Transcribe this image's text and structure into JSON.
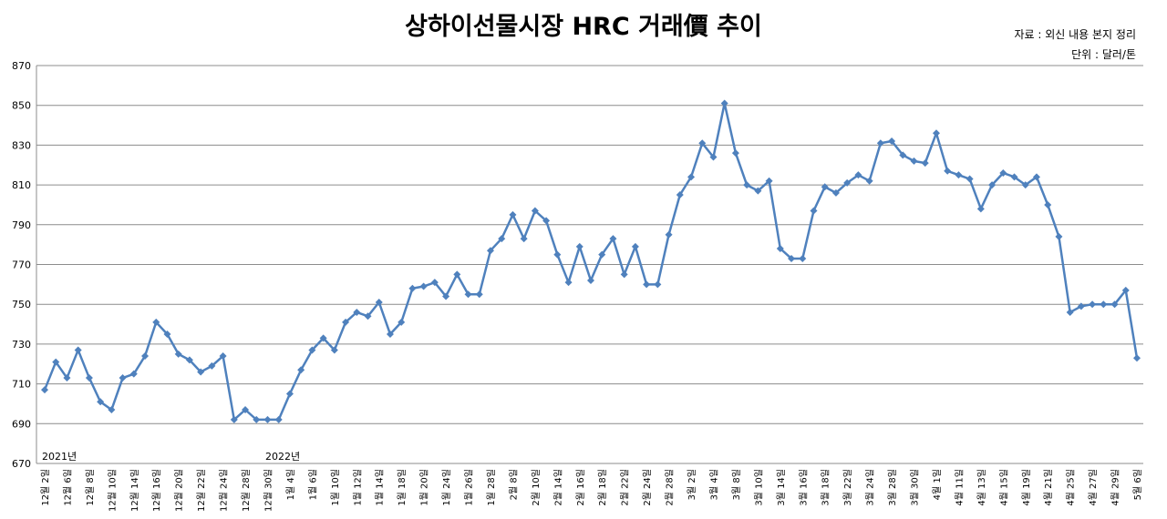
{
  "chart_data": {
    "type": "line",
    "title": "상하이선물시장 HRC 거래價 추이",
    "source": "자료 : 외신 내용 본지 정리",
    "unit": "단위 : 달러/톤",
    "annotations": [
      "2021년",
      "2022년"
    ],
    "categories": [
      "12월 2일",
      null,
      "12월 6일",
      null,
      "12월 8일",
      null,
      "12월 10일",
      null,
      "12월 14일",
      null,
      "12월 16일",
      null,
      "12월 20일",
      null,
      "12월 22일",
      null,
      "12월 24일",
      null,
      "12월 28일",
      null,
      "12월 30일",
      null,
      "1월 4일",
      null,
      "1월 6일",
      null,
      "1월 10일",
      null,
      "1월 12일",
      null,
      "1월 14일",
      null,
      "1월 18일",
      null,
      "1월 20일",
      null,
      "1월 24일",
      null,
      "1월 26일",
      null,
      "1월 28일",
      null,
      "2월 8일",
      null,
      "2월 10일",
      null,
      "2월 14일",
      null,
      "2월 16일",
      null,
      "2월 18일",
      null,
      "2월 22일",
      null,
      "2월 24일",
      null,
      "2월 28일",
      null,
      "3월 2일",
      null,
      "3월 4일",
      null,
      "3월 8일",
      null,
      "3월 10일",
      null,
      "3월 14일",
      null,
      "3월 16일",
      null,
      "3월 18일",
      null,
      "3월 22일",
      null,
      "3월 24일",
      null,
      "3월 28일",
      null,
      "3월 30일",
      null,
      "4월 1일",
      null,
      "4월 11일",
      null,
      "4월 13일",
      null,
      "4월 15일",
      null,
      "4월 19일",
      null,
      "4월 21일",
      null,
      "4월 25일",
      null,
      "4월 27일",
      null,
      "4월 29일",
      null,
      "5월 6일"
    ],
    "series": [
      {
        "name": "HRC",
        "color": "#4f81bd",
        "values": [
          707,
          721,
          713,
          727,
          713,
          701,
          697,
          713,
          715,
          724,
          741,
          735,
          725,
          722,
          716,
          719,
          724,
          692,
          697,
          692,
          692,
          692,
          705,
          717,
          727,
          733,
          727,
          741,
          746,
          744,
          751,
          735,
          741,
          758,
          759,
          761,
          754,
          765,
          755,
          755,
          777,
          783,
          795,
          783,
          797,
          792,
          775,
          761,
          779,
          762,
          775,
          783,
          765,
          779,
          760,
          760,
          785,
          805,
          814,
          831,
          824,
          851,
          826,
          810,
          807,
          812,
          778,
          773,
          773,
          797,
          809,
          806,
          811,
          815,
          812,
          831,
          832,
          825,
          822,
          821,
          836,
          817,
          815,
          813,
          798,
          810,
          816,
          814,
          810,
          814,
          800,
          784,
          746,
          749,
          750,
          750,
          750,
          757,
          723
        ]
      }
    ],
    "ylim": [
      670,
      870
    ],
    "yticks": [
      670,
      690,
      710,
      730,
      750,
      770,
      790,
      810,
      830,
      850,
      870
    ],
    "grid": true
  }
}
